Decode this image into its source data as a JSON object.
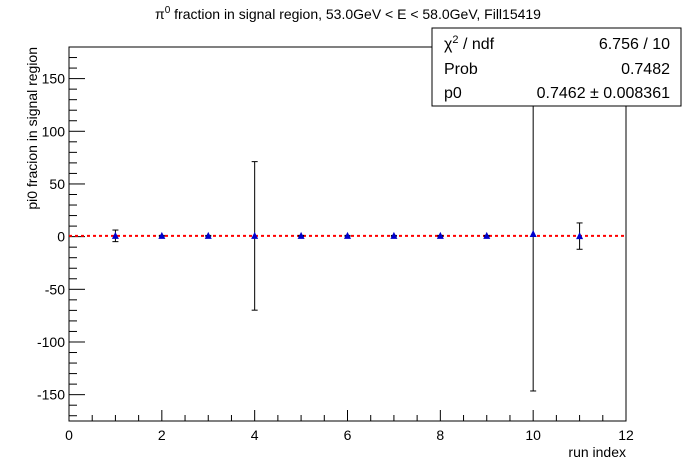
{
  "chart_data": {
    "type": "scatter",
    "title_prefix": "π",
    "title_sup": "0",
    "title_rest": " fraction in signal region, 53.0GeV < E < 58.0GeV, Fill15419",
    "xlabel": "run index",
    "ylabel": "pi0 fracion in signal region",
    "xlim": [
      0,
      12
    ],
    "ylim": [
      -175,
      180
    ],
    "xticks": [
      0,
      2,
      4,
      6,
      8,
      10,
      12
    ],
    "yticks": [
      -150,
      -100,
      -50,
      0,
      50,
      100,
      150
    ],
    "fit_value": 0.7462,
    "fit_color": "#ff0000",
    "marker_color": "#0000cc",
    "points": [
      {
        "x": 1,
        "y": 0.75,
        "err": 5.5
      },
      {
        "x": 2,
        "y": 0.74,
        "err": 0.4
      },
      {
        "x": 3,
        "y": 0.75,
        "err": 0.4
      },
      {
        "x": 4,
        "y": 0.7,
        "err": 70.5
      },
      {
        "x": 5,
        "y": 0.74,
        "err": 0.4
      },
      {
        "x": 6,
        "y": 0.75,
        "err": 0.4
      },
      {
        "x": 7,
        "y": 0.74,
        "err": 0.4
      },
      {
        "x": 8,
        "y": 0.76,
        "err": 0.4
      },
      {
        "x": 9,
        "y": 0.74,
        "err": 0.4
      },
      {
        "x": 10,
        "y": 2.5,
        "err": 149
      },
      {
        "x": 11,
        "y": 0.5,
        "err": 12.5
      }
    ]
  },
  "stats": {
    "chi2_label_prefix": "χ",
    "chi2_label_sup": "2",
    "chi2_label_rest": " / ndf",
    "chi2_value": "6.756 / 10",
    "prob_label": "Prob",
    "prob_value": "0.7482",
    "p0_label": "p0",
    "p0_value": "0.7462 ± 0.008361"
  }
}
